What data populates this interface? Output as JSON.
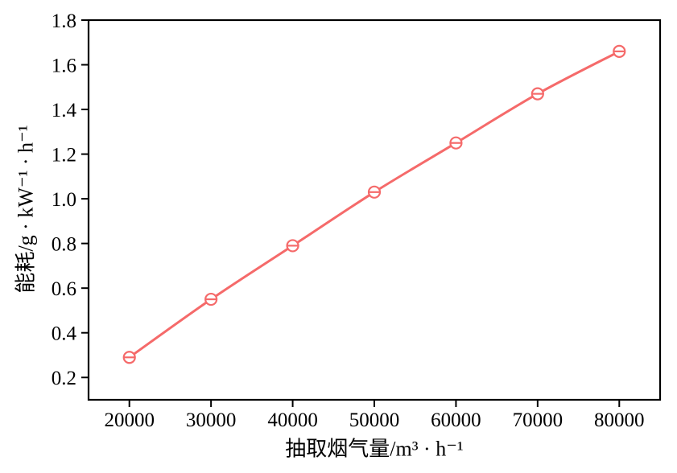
{
  "chart_data": {
    "type": "line",
    "title": "",
    "xlabel": "抽取烟气量/m³ · h⁻¹",
    "ylabel": "能耗/g · kW⁻¹ · h⁻¹",
    "x": [
      20000,
      30000,
      40000,
      50000,
      60000,
      70000,
      80000
    ],
    "series": [
      {
        "name": "能耗",
        "values": [
          0.29,
          0.55,
          0.79,
          1.03,
          1.25,
          1.47,
          1.66
        ]
      }
    ],
    "xlim": [
      15000,
      85000
    ],
    "ylim": [
      0.1,
      1.8
    ],
    "xtick_labels": [
      "20000",
      "30000",
      "40000",
      "50000",
      "60000",
      "70000",
      "80000"
    ],
    "ytick_labels": [
      "0.2",
      "0.4",
      "0.6",
      "0.8",
      "1.0",
      "1.2",
      "1.4",
      "1.6",
      "1.8"
    ],
    "grid": false,
    "legend_position": "none",
    "line_color": "#f56a6a",
    "marker": "circle-open-hline",
    "marker_fill": "#ffffff",
    "axis_color": "#000000"
  }
}
